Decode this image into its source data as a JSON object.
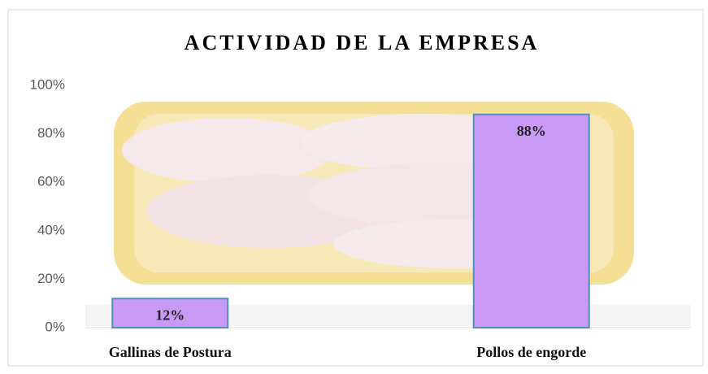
{
  "chart_data": {
    "type": "bar",
    "title": "ACTIVIDAD DE LA EMPRESA",
    "categories": [
      "Gallinas de Postura",
      "Pollos de engorde"
    ],
    "values": [
      12,
      88
    ],
    "value_labels": [
      "12%",
      "88%"
    ],
    "color": "#c89af5",
    "ylim": [
      0,
      100
    ],
    "yticks": [
      {
        "value": 0,
        "label": "0%"
      },
      {
        "value": 20,
        "label": "20%"
      },
      {
        "value": 40,
        "label": "40%"
      },
      {
        "value": 60,
        "label": "60%"
      },
      {
        "value": 80,
        "label": "80%"
      },
      {
        "value": 100,
        "label": "100%"
      }
    ]
  }
}
